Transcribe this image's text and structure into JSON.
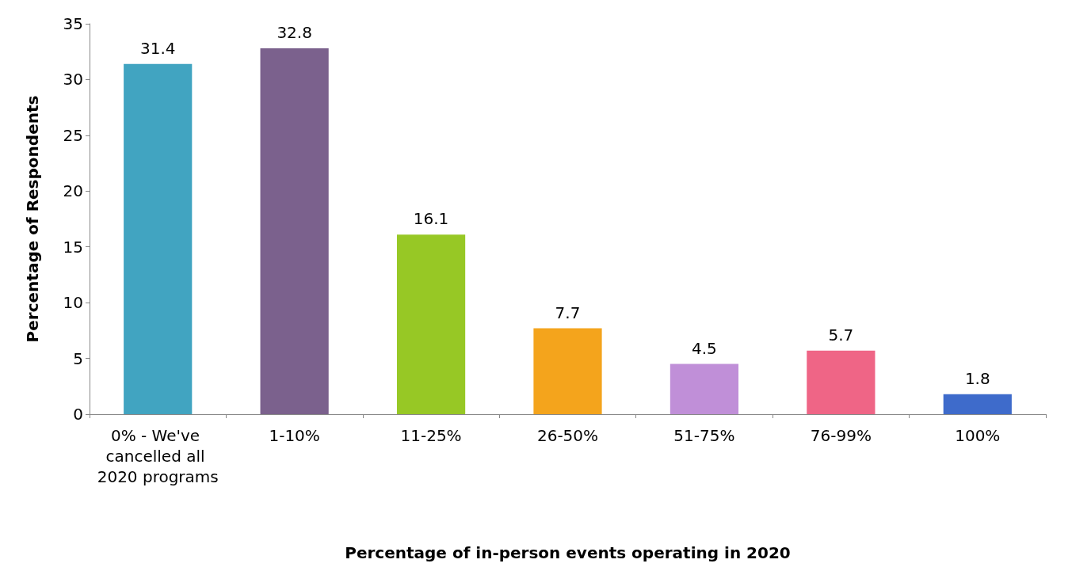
{
  "chart_data": {
    "type": "bar",
    "xlabel": "Percentage of in-person events operating in 2020",
    "ylabel": "Percentage of Respondents",
    "categories": [
      "0% - We've cancelled all 2020 programs",
      "1-10%",
      "11-25%",
      "26-50%",
      "51-75%",
      "76-99%",
      "100%"
    ],
    "values": [
      31.4,
      32.8,
      16.1,
      7.7,
      4.5,
      5.7,
      1.8
    ],
    "colors": [
      "#41a4c1",
      "#7b618d",
      "#97c825",
      "#f4a41c",
      "#c08fd8",
      "#ef6586",
      "#3e6bcb"
    ],
    "ylim": [
      0,
      35
    ],
    "yticks": [
      0,
      5,
      10,
      15,
      20,
      25,
      30,
      35
    ],
    "grid": false,
    "data_labels": true
  }
}
